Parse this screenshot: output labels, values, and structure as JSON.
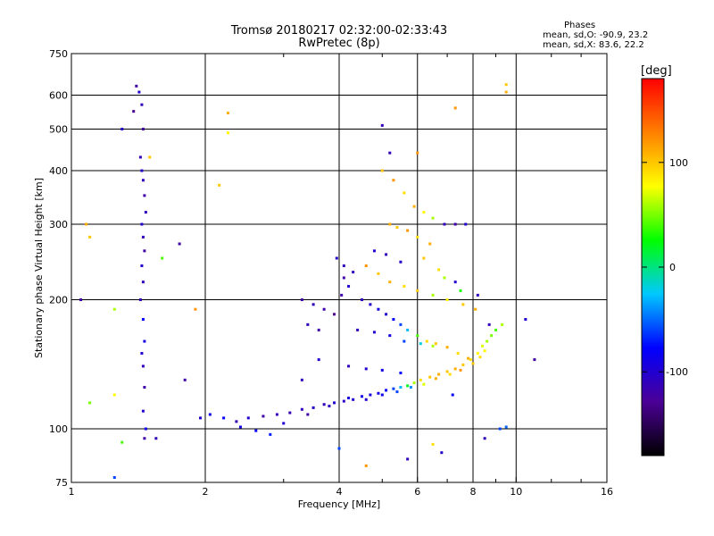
{
  "header": {
    "title_line1": "Tromsø 20180217 02:32:00-02:33:43",
    "title_line2": "RwPretec (8p)",
    "phases_heading": "Phases",
    "phases_o": "mean, sd,O: -90.9, 23.2",
    "phases_x": "mean, sd,X:  83.6, 22.2"
  },
  "colorbar": {
    "label": "[deg]",
    "ticks": [
      "100",
      "0",
      "-100"
    ],
    "tick_values": [
      100,
      0,
      -100
    ],
    "range": [
      -180,
      180
    ],
    "colors": [
      "#000000",
      "#4b0096",
      "#0000ff",
      "#00c8ff",
      "#00ff00",
      "#ffff00",
      "#ff8000",
      "#ff0000"
    ]
  },
  "chart_data": {
    "type": "scatter",
    "xlabel": "Frequency [MHz]",
    "ylabel": "Stationary phase Virtual Height [km]",
    "xscale": "log",
    "yscale": "log",
    "xlim": [
      1,
      16
    ],
    "ylim": [
      75,
      750
    ],
    "xticks": [
      1,
      2,
      4,
      6,
      8,
      10,
      16
    ],
    "xtick_labels": [
      "1",
      "2",
      "4",
      "6",
      "8",
      "10",
      "16"
    ],
    "yticks": [
      75,
      100,
      200,
      300,
      400,
      500,
      600,
      750
    ],
    "ytick_labels": [
      "75",
      "100",
      "200",
      "300",
      "400",
      "500",
      "600",
      "750"
    ],
    "grid": true,
    "series": [
      {
        "trace": "lower",
        "points": [
          [
            1.95,
            106,
            -100
          ],
          [
            2.05,
            108,
            -90
          ],
          [
            2.2,
            106,
            -80
          ],
          [
            2.35,
            104,
            -110
          ],
          [
            2.5,
            106,
            -100
          ],
          [
            2.7,
            107,
            -120
          ],
          [
            2.9,
            108,
            -110
          ],
          [
            3.1,
            109,
            -115
          ],
          [
            3.3,
            111,
            -110
          ],
          [
            3.5,
            112,
            -105
          ],
          [
            3.7,
            114,
            -110
          ],
          [
            3.9,
            115,
            -100
          ],
          [
            4.1,
            116,
            -105
          ],
          [
            4.3,
            117,
            -100
          ],
          [
            4.5,
            119,
            -90
          ],
          [
            4.7,
            120,
            -95
          ],
          [
            4.9,
            121,
            -90
          ],
          [
            5.1,
            123,
            -80
          ],
          [
            5.3,
            124,
            -60
          ],
          [
            5.5,
            125,
            -30
          ],
          [
            5.7,
            126,
            20
          ],
          [
            5.9,
            128,
            60
          ],
          [
            6.1,
            130,
            90
          ],
          [
            6.4,
            132,
            100
          ],
          [
            6.7,
            134,
            110
          ],
          [
            7.0,
            136,
            100
          ],
          [
            7.3,
            138,
            110
          ],
          [
            7.6,
            141,
            100
          ],
          [
            7.9,
            145,
            90
          ],
          [
            8.2,
            150,
            80
          ],
          [
            8.4,
            156,
            70
          ],
          [
            8.6,
            160,
            60
          ],
          [
            8.8,
            165,
            50
          ],
          [
            9.0,
            170,
            40
          ],
          [
            9.3,
            175,
            60
          ],
          [
            2.4,
            101,
            -90
          ],
          [
            2.6,
            99,
            -80
          ],
          [
            2.8,
            97,
            -70
          ],
          [
            3.0,
            103,
            -100
          ],
          [
            3.4,
            108,
            -120
          ],
          [
            3.8,
            113,
            -110
          ],
          [
            4.2,
            118,
            -95
          ],
          [
            4.6,
            117,
            -100
          ],
          [
            5.0,
            120,
            -85
          ],
          [
            5.4,
            122,
            -60
          ],
          [
            5.8,
            125,
            -40
          ],
          [
            6.2,
            127,
            70
          ],
          [
            6.6,
            131,
            110
          ],
          [
            7.1,
            134,
            90
          ],
          [
            7.5,
            137,
            120
          ],
          [
            8.0,
            142,
            100
          ],
          [
            8.3,
            147,
            90
          ],
          [
            8.5,
            152,
            80
          ]
        ]
      },
      {
        "trace": "mid-layer",
        "points": [
          [
            3.3,
            200,
            -120
          ],
          [
            3.5,
            195,
            -110
          ],
          [
            3.7,
            190,
            -120
          ],
          [
            3.9,
            185,
            -130
          ],
          [
            3.4,
            175,
            -110
          ],
          [
            3.6,
            170,
            -120
          ],
          [
            4.1,
            240,
            -110
          ],
          [
            4.1,
            225,
            -120
          ],
          [
            4.2,
            215,
            -100
          ],
          [
            4.3,
            232,
            -110
          ],
          [
            3.95,
            250,
            -100
          ],
          [
            4.05,
            205,
            -120
          ],
          [
            4.5,
            200,
            -110
          ],
          [
            4.7,
            195,
            -100
          ],
          [
            4.9,
            190,
            -90
          ],
          [
            5.1,
            185,
            -100
          ],
          [
            5.3,
            180,
            -80
          ],
          [
            5.5,
            175,
            -60
          ],
          [
            5.7,
            170,
            -30
          ],
          [
            6.0,
            165,
            40
          ],
          [
            6.3,
            160,
            90
          ],
          [
            6.6,
            158,
            100
          ],
          [
            7.0,
            155,
            110
          ],
          [
            7.4,
            150,
            90
          ],
          [
            7.8,
            146,
            110
          ],
          [
            4.4,
            170,
            -110
          ],
          [
            4.8,
            168,
            -100
          ],
          [
            5.2,
            165,
            -90
          ],
          [
            5.6,
            160,
            -60
          ],
          [
            6.1,
            158,
            -20
          ],
          [
            6.5,
            156,
            60
          ],
          [
            4.2,
            140,
            -110
          ],
          [
            4.6,
            138,
            -100
          ],
          [
            5.0,
            137,
            -90
          ],
          [
            5.5,
            135,
            -80
          ],
          [
            3.6,
            145,
            -100
          ],
          [
            3.3,
            130,
            -110
          ]
        ]
      },
      {
        "trace": "upper-layer",
        "points": [
          [
            5.0,
            400,
            100
          ],
          [
            5.3,
            380,
            120
          ],
          [
            5.6,
            355,
            90
          ],
          [
            5.9,
            330,
            110
          ],
          [
            6.2,
            320,
            80
          ],
          [
            6.5,
            310,
            60
          ],
          [
            6.9,
            300,
            -110
          ],
          [
            7.3,
            300,
            -120
          ],
          [
            7.7,
            300,
            -100
          ],
          [
            5.2,
            300,
            110
          ],
          [
            5.4,
            295,
            100
          ],
          [
            5.7,
            290,
            120
          ],
          [
            6.0,
            280,
            90
          ],
          [
            6.4,
            270,
            110
          ],
          [
            4.6,
            240,
            120
          ],
          [
            4.9,
            230,
            100
          ],
          [
            5.2,
            220,
            110
          ],
          [
            5.6,
            215,
            90
          ],
          [
            6.0,
            210,
            100
          ],
          [
            6.5,
            205,
            60
          ],
          [
            7.0,
            200,
            80
          ],
          [
            7.6,
            195,
            100
          ],
          [
            8.1,
            190,
            110
          ],
          [
            4.8,
            260,
            -100
          ],
          [
            5.1,
            255,
            -110
          ],
          [
            5.5,
            245,
            -100
          ],
          [
            6.7,
            235,
            90
          ],
          [
            6.9,
            225,
            60
          ],
          [
            7.3,
            220,
            -100
          ],
          [
            7.5,
            210,
            30
          ],
          [
            8.2,
            205,
            -110
          ],
          [
            6.2,
            250,
            100
          ]
        ]
      },
      {
        "trace": "scatter-low-freq",
        "points": [
          [
            1.4,
            630,
            -120
          ],
          [
            1.42,
            610,
            -100
          ],
          [
            1.44,
            570,
            -110
          ],
          [
            1.38,
            550,
            -130
          ],
          [
            1.45,
            500,
            -120
          ],
          [
            1.43,
            430,
            -110
          ],
          [
            1.44,
            400,
            -100
          ],
          [
            1.45,
            380,
            -110
          ],
          [
            1.46,
            350,
            -120
          ],
          [
            1.47,
            320,
            -110
          ],
          [
            1.44,
            300,
            -100
          ],
          [
            1.45,
            280,
            -110
          ],
          [
            1.46,
            260,
            -120
          ],
          [
            1.44,
            240,
            -100
          ],
          [
            1.45,
            220,
            -110
          ],
          [
            1.43,
            200,
            -110
          ],
          [
            1.45,
            180,
            -80
          ],
          [
            1.46,
            160,
            -90
          ],
          [
            1.44,
            150,
            -100
          ],
          [
            1.45,
            140,
            -110
          ],
          [
            1.46,
            125,
            -120
          ],
          [
            1.45,
            110,
            -100
          ],
          [
            1.47,
            100,
            -90
          ],
          [
            1.46,
            95,
            -120
          ],
          [
            1.3,
            500,
            -100
          ],
          [
            1.5,
            430,
            100
          ],
          [
            1.1,
            280,
            100
          ],
          [
            1.05,
            200,
            -120
          ],
          [
            1.25,
            190,
            60
          ],
          [
            1.75,
            270,
            -120
          ],
          [
            1.3,
            93,
            40
          ],
          [
            1.25,
            77,
            -60
          ],
          [
            2.25,
            545,
            110
          ],
          [
            2.25,
            490,
            80
          ],
          [
            2.15,
            370,
            100
          ],
          [
            1.9,
            190,
            120
          ],
          [
            1.6,
            250,
            40
          ],
          [
            1.8,
            130,
            -120
          ],
          [
            1.55,
            95,
            -110
          ],
          [
            1.1,
            115,
            50
          ],
          [
            1.25,
            120,
            80
          ],
          [
            1.08,
            300,
            110
          ]
        ]
      },
      {
        "trace": "scatter-high-freq",
        "points": [
          [
            9.5,
            635,
            100
          ],
          [
            9.5,
            610,
            110
          ],
          [
            7.3,
            560,
            120
          ],
          [
            5.0,
            510,
            -110
          ],
          [
            6.0,
            440,
            120
          ],
          [
            5.2,
            440,
            -110
          ],
          [
            9.2,
            100,
            -60
          ],
          [
            9.5,
            101,
            -50
          ],
          [
            8.5,
            95,
            -110
          ],
          [
            10.5,
            180,
            -100
          ],
          [
            11,
            145,
            -120
          ],
          [
            8.7,
            175,
            -110
          ],
          [
            7.2,
            120,
            -80
          ],
          [
            6.8,
            88,
            -100
          ],
          [
            6.5,
            92,
            90
          ],
          [
            4.6,
            82,
            120
          ],
          [
            5.7,
            85,
            -110
          ],
          [
            4.0,
            90,
            -60
          ]
        ]
      }
    ]
  }
}
